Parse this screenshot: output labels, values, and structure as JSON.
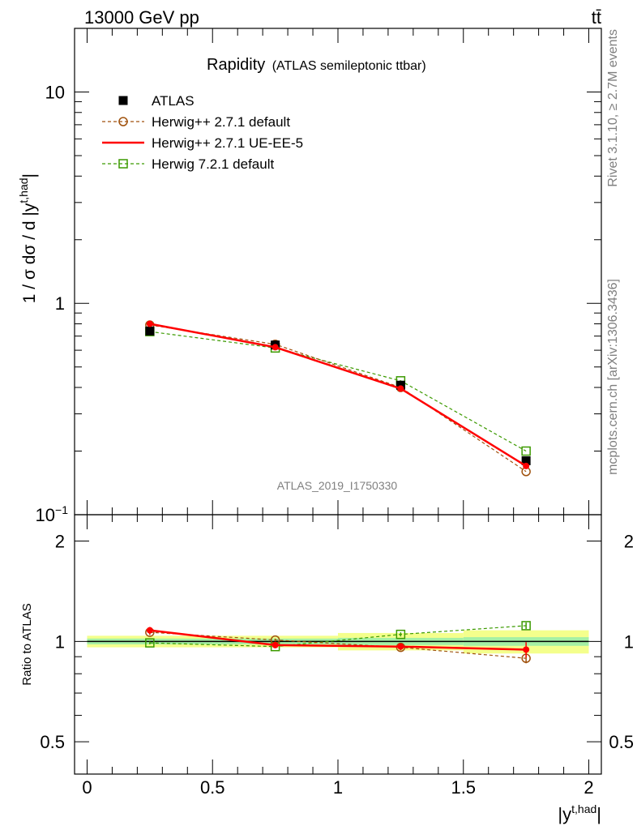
{
  "header": {
    "energy_label": "13000 GeV pp",
    "process_label": "tt̄"
  },
  "side_labels": {
    "rivet": "Rivet 3.1.10, ≥ 2.7M events",
    "source": "mcplots.cern.ch [arXiv:1306.3436]"
  },
  "watermark": "ATLAS_2019_I1750330",
  "chart_data": [
    {
      "type": "line",
      "title": "Rapidity",
      "subtitle": "(ATLAS semileptonic ttbar)",
      "ylabel": "1 / σ dσ / d |y^{t,had}|",
      "ylabel_parts": {
        "main": "1 / σ dσ / d |y",
        "sup": "t,had",
        "end": "|"
      },
      "yscale": "log",
      "ylim": [
        0.1,
        20
      ],
      "xlim": [
        -0.05,
        2.05
      ],
      "y_ticks": [
        {
          "value": 0.1,
          "label_base": "10",
          "label_exp": "−1"
        },
        {
          "value": 1,
          "label_base": "1",
          "label_exp": ""
        },
        {
          "value": 10,
          "label_base": "10",
          "label_exp": ""
        }
      ],
      "legend_position": "top-left",
      "x": [
        0.25,
        0.75,
        1.25,
        1.75
      ],
      "series": [
        {
          "name": "ATLAS",
          "style": "data",
          "color": "#000000",
          "values": [
            0.74,
            0.635,
            0.41,
            0.18
          ]
        },
        {
          "name": "Herwig++ 2.7.1 default",
          "style": "dashed-circle",
          "color": "#a0520e",
          "values": [
            0.79,
            0.64,
            0.4,
            0.16
          ]
        },
        {
          "name": "Herwig++ 2.7.1 UE-EE-5",
          "style": "solid",
          "color": "#ff0000",
          "values": [
            0.8,
            0.62,
            0.395,
            0.17
          ]
        },
        {
          "name": "Herwig 7.2.1 default",
          "style": "dashed-square",
          "color": "#3c9a00",
          "values": [
            0.735,
            0.615,
            0.43,
            0.2
          ]
        }
      ]
    },
    {
      "type": "line",
      "ylabel": "Ratio to ATLAS",
      "xlabel": "|y^{t,had}|",
      "xlabel_parts": {
        "main": "|y",
        "sup": "t,had",
        "end": "|"
      },
      "ylim": [
        0.4,
        2.4
      ],
      "yscale": "log",
      "y_ticks": [
        {
          "value": 0.5,
          "label": "0.5"
        },
        {
          "value": 1,
          "label": "1"
        },
        {
          "value": 2,
          "label": "2"
        }
      ],
      "x_ticks": [
        {
          "value": 0,
          "label": "0"
        },
        {
          "value": 0.5,
          "label": "0.5"
        },
        {
          "value": 1,
          "label": "1"
        },
        {
          "value": 1.5,
          "label": "1.5"
        },
        {
          "value": 2,
          "label": "2"
        }
      ],
      "x": [
        0.25,
        0.75,
        1.25,
        1.75
      ],
      "band_outer": [
        0.04,
        0.04,
        0.06,
        0.08
      ],
      "band_inner": [
        0.02,
        0.02,
        0.025,
        0.03
      ],
      "series": [
        {
          "name": "Herwig++ 2.7.1 default",
          "values": [
            1.065,
            1.01,
            0.96,
            0.89
          ],
          "errors": [
            0.02,
            0.01,
            0.02,
            0.03
          ]
        },
        {
          "name": "Herwig++ 2.7.1 UE-EE-5",
          "values": [
            1.08,
            0.975,
            0.965,
            0.945
          ],
          "errors": [
            0.025,
            0.01,
            0.02,
            0.05
          ]
        },
        {
          "name": "Herwig 7.2.1 default",
          "values": [
            0.99,
            0.965,
            1.05,
            1.115
          ],
          "errors": [
            0.01,
            0.01,
            0.015,
            0.025
          ]
        }
      ]
    }
  ]
}
